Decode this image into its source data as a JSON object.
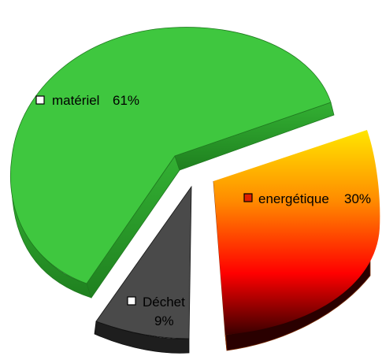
{
  "chart_data": {
    "type": "pie",
    "title": "",
    "style": "3d-exploded",
    "series": [
      {
        "name": "matériel",
        "value": 61,
        "label_name": "matériel",
        "label_value": "61%",
        "colors": {
          "top": "#3fc73f",
          "side": "#2a9a2a",
          "edge": "#1f7a1f"
        },
        "key_color": "#ffffff"
      },
      {
        "name": "energétique",
        "value": 30,
        "label_name": "energétique",
        "label_value": "30%",
        "colors": {
          "grad_top": "#ffe600",
          "grad_mid": "#ff8a00",
          "grad_low": "#ff0000",
          "grad_bottom": "#3a0000",
          "side": "#2a0000",
          "edge": "#7a2a00"
        },
        "key_color": "#e02000"
      },
      {
        "name": "Déchet",
        "value": 9,
        "label_name": "Déchet",
        "label_value": "9%",
        "colors": {
          "top": "#4a4a4a",
          "side": "#1e1e1e",
          "edge": "#111111"
        },
        "key_color": "#ffffff"
      }
    ]
  }
}
